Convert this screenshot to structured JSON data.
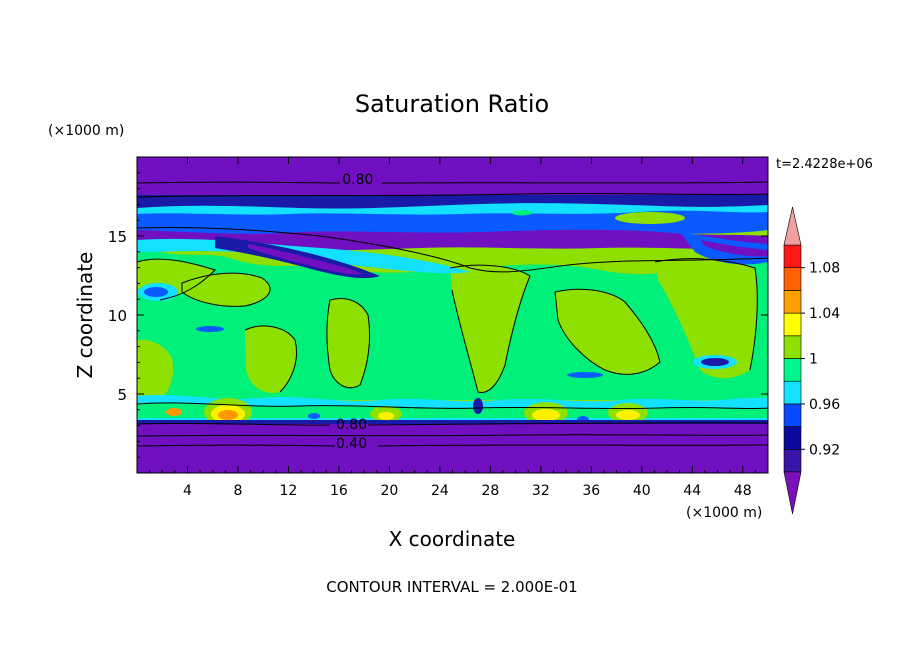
{
  "chart_data": {
    "type": "heatmap",
    "title": "Saturation Ratio",
    "xlabel": "X coordinate",
    "ylabel": "Z coordinate",
    "x_unit": "(×1000 m)",
    "y_unit": "(×1000 m)",
    "time_label": "t=2.4228e+06",
    "footer": "CONTOUR INTERVAL = 2.000E-01",
    "xlim": [
      0,
      50
    ],
    "ylim": [
      0,
      20
    ],
    "x_ticks": [
      4,
      8,
      12,
      16,
      20,
      24,
      28,
      32,
      36,
      40,
      44,
      48
    ],
    "x_tick_labels": [
      "4",
      "8",
      "12",
      "16",
      "20",
      "24",
      "28",
      "32",
      "36",
      "40",
      "44",
      "48"
    ],
    "y_ticks": [
      5,
      10,
      15
    ],
    "y_tick_labels": [
      "5",
      "10",
      "15"
    ],
    "contour_labels": [
      {
        "text": "0.80",
        "x": 17.5,
        "y": 18.6
      },
      {
        "text": "0.80",
        "x": 17.0,
        "y": 3.1
      },
      {
        "text": "0.40",
        "x": 17.0,
        "y": 1.9
      }
    ],
    "colorbar": {
      "levels": [
        0.9,
        0.92,
        0.94,
        0.96,
        0.98,
        1.0,
        1.02,
        1.04,
        1.06,
        1.08,
        1.1
      ],
      "labels": [
        "0.92",
        "0.96",
        "1",
        "1.04",
        "1.08"
      ],
      "label_values": [
        0.92,
        0.96,
        1.0,
        1.04,
        1.08
      ],
      "colors": [
        "#6a0dad",
        "#3a14a8",
        "#0a0a9e",
        "#0a4aff",
        "#12e4ff",
        "#00f58c",
        "#8fe000",
        "#ffff00",
        "#ffa000",
        "#ff6000",
        "#ff1a1a",
        "#f0a0a0"
      ],
      "under_color": "#7a10b8",
      "over_color": "#f0a0a0"
    },
    "colors": {
      "purple": "#7010c0",
      "indigo": "#1a1aa8",
      "blue": "#0a5aff",
      "cyan": "#14e0ff",
      "green": "#00f07a",
      "lime": "#8ee000",
      "yellow": "#fff000",
      "orange": "#ff9800",
      "red": "#ff2020"
    }
  }
}
